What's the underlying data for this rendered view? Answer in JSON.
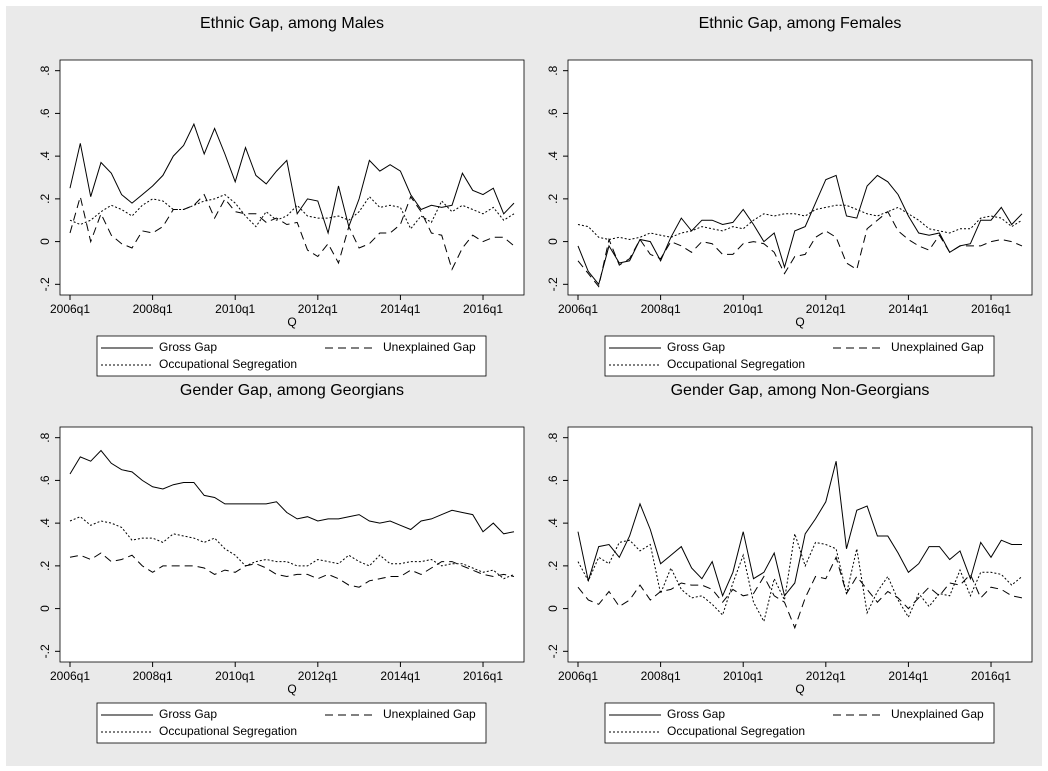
{
  "chart_data": [
    {
      "type": "line",
      "title": "Ethnic Gap, among Males",
      "x_label": "Q",
      "categories": [
        "2006q1",
        null,
        null,
        null,
        null,
        null,
        null,
        null,
        "2008q1",
        null,
        null,
        null,
        null,
        null,
        null,
        null,
        "2010q1",
        null,
        null,
        null,
        null,
        null,
        null,
        null,
        "2012q1",
        null,
        null,
        null,
        null,
        null,
        null,
        null,
        "2014q1",
        null,
        null,
        null,
        null,
        null,
        null,
        null,
        "2016q1",
        null,
        null,
        null
      ],
      "series": [
        {
          "name": "Gross Gap",
          "color": "#000000",
          "dash": "solid",
          "values": [
            0.25,
            0.46,
            0.21,
            0.37,
            0.32,
            0.22,
            0.18,
            0.22,
            0.26,
            0.31,
            0.4,
            0.45,
            0.55,
            0.41,
            0.53,
            0.41,
            0.28,
            0.44,
            0.31,
            0.27,
            0.33,
            0.38,
            0.13,
            0.2,
            0.19,
            0.04,
            0.26,
            0.07,
            0.2,
            0.38,
            0.33,
            0.36,
            0.33,
            0.22,
            0.15,
            0.17,
            0.16,
            0.17,
            0.32,
            0.24,
            0.22,
            0.25,
            0.13,
            0.18
          ]
        },
        {
          "name": "Unexplained Gap",
          "color": "#000000",
          "dash": "dash",
          "values": [
            0.04,
            0.21,
            0.0,
            0.13,
            0.03,
            -0.01,
            -0.03,
            0.05,
            0.04,
            0.07,
            0.15,
            0.15,
            0.17,
            0.22,
            0.11,
            0.2,
            0.14,
            0.13,
            0.13,
            0.09,
            0.11,
            0.08,
            0.09,
            -0.04,
            -0.07,
            -0.01,
            -0.1,
            0.07,
            -0.03,
            -0.01,
            0.04,
            0.04,
            0.08,
            0.21,
            0.14,
            0.04,
            0.03,
            -0.13,
            -0.03,
            0.03,
            0.0,
            0.02,
            0.02,
            -0.02
          ]
        },
        {
          "name": "Occupational Segregation",
          "color": "#000000",
          "dash": "dot",
          "values": [
            0.1,
            0.08,
            0.1,
            0.14,
            0.17,
            0.15,
            0.12,
            0.17,
            0.2,
            0.19,
            0.15,
            0.15,
            0.17,
            0.19,
            0.2,
            0.22,
            0.18,
            0.12,
            0.07,
            0.14,
            0.1,
            0.12,
            0.17,
            0.12,
            0.11,
            0.11,
            0.12,
            0.1,
            0.14,
            0.21,
            0.16,
            0.17,
            0.16,
            0.06,
            0.12,
            0.09,
            0.19,
            0.14,
            0.17,
            0.15,
            0.13,
            0.16,
            0.1,
            0.13
          ]
        }
      ],
      "ylim": [
        -0.25,
        0.85
      ],
      "yticks": [
        {
          "value": -0.2,
          "label": "-.2"
        },
        0,
        {
          "value": 0.2,
          "label": ".2"
        },
        {
          "value": 0.4,
          "label": ".4"
        },
        {
          "value": 0.6,
          "label": ".6"
        },
        {
          "value": 0.8,
          "label": ".8"
        }
      ],
      "grid": false,
      "legend": "bottom"
    },
    {
      "type": "line",
      "title": "Ethnic Gap, among Females",
      "x_label": "Q",
      "categories": [
        "2006q1",
        null,
        null,
        null,
        null,
        null,
        null,
        null,
        "2008q1",
        null,
        null,
        null,
        null,
        null,
        null,
        null,
        "2010q1",
        null,
        null,
        null,
        null,
        null,
        null,
        null,
        "2012q1",
        null,
        null,
        null,
        null,
        null,
        null,
        null,
        "2014q1",
        null,
        null,
        null,
        null,
        null,
        null,
        null,
        "2016q1",
        null,
        null,
        null
      ],
      "series": [
        {
          "name": "Gross Gap",
          "color": "#000000",
          "dash": "solid",
          "values": [
            -0.02,
            -0.14,
            -0.2,
            -0.02,
            -0.1,
            -0.09,
            0.01,
            0.0,
            -0.09,
            0.02,
            0.11,
            0.05,
            0.1,
            0.1,
            0.08,
            0.09,
            0.15,
            0.08,
            0.0,
            0.04,
            -0.12,
            0.05,
            0.07,
            0.18,
            0.29,
            0.31,
            0.12,
            0.11,
            0.26,
            0.31,
            0.28,
            0.22,
            0.12,
            0.04,
            0.03,
            0.04,
            -0.05,
            -0.02,
            -0.01,
            0.1,
            0.1,
            0.16,
            0.08,
            0.13
          ]
        },
        {
          "name": "Unexplained Gap",
          "color": "#000000",
          "dash": "dash",
          "values": [
            -0.09,
            -0.15,
            -0.21,
            0.01,
            -0.11,
            -0.08,
            0.01,
            -0.06,
            -0.08,
            0.0,
            -0.02,
            -0.05,
            0.0,
            -0.01,
            -0.06,
            -0.06,
            -0.01,
            0.0,
            -0.01,
            -0.05,
            -0.15,
            -0.07,
            -0.06,
            0.02,
            0.05,
            0.02,
            -0.1,
            -0.13,
            0.06,
            0.1,
            0.14,
            0.05,
            0.01,
            -0.02,
            -0.04,
            0.03,
            -0.05,
            -0.02,
            -0.02,
            -0.02,
            0.0,
            0.01,
            0.0,
            -0.02
          ]
        },
        {
          "name": "Occupational Segregation",
          "color": "#000000",
          "dash": "dot",
          "values": [
            0.08,
            0.07,
            0.02,
            0.01,
            0.02,
            0.01,
            0.02,
            0.04,
            0.03,
            0.02,
            0.04,
            0.05,
            0.07,
            0.06,
            0.05,
            0.07,
            0.06,
            0.1,
            0.13,
            0.12,
            0.13,
            0.13,
            0.12,
            0.15,
            0.16,
            0.17,
            0.17,
            0.15,
            0.13,
            0.12,
            0.14,
            0.16,
            0.13,
            0.1,
            0.06,
            0.05,
            0.04,
            0.06,
            0.06,
            0.11,
            0.12,
            0.11,
            0.07,
            0.1
          ]
        }
      ],
      "ylim": [
        -0.25,
        0.85
      ],
      "yticks": [
        {
          "value": -0.2,
          "label": "-.2"
        },
        0,
        {
          "value": 0.2,
          "label": ".2"
        },
        {
          "value": 0.4,
          "label": ".4"
        },
        {
          "value": 0.6,
          "label": ".6"
        },
        {
          "value": 0.8,
          "label": ".8"
        }
      ],
      "grid": false,
      "legend": "bottom"
    },
    {
      "type": "line",
      "title": "Gender Gap, among Georgians",
      "x_label": "Q",
      "categories": [
        "2006q1",
        null,
        null,
        null,
        null,
        null,
        null,
        null,
        "2008q1",
        null,
        null,
        null,
        null,
        null,
        null,
        null,
        "2010q1",
        null,
        null,
        null,
        null,
        null,
        null,
        null,
        "2012q1",
        null,
        null,
        null,
        null,
        null,
        null,
        null,
        "2014q1",
        null,
        null,
        null,
        null,
        null,
        null,
        null,
        "2016q1",
        null,
        null,
        null
      ],
      "series": [
        {
          "name": "Gross Gap",
          "color": "#000000",
          "dash": "solid",
          "values": [
            0.63,
            0.71,
            0.69,
            0.74,
            0.68,
            0.65,
            0.64,
            0.6,
            0.57,
            0.56,
            0.58,
            0.59,
            0.59,
            0.53,
            0.52,
            0.49,
            0.49,
            0.49,
            0.49,
            0.49,
            0.5,
            0.45,
            0.42,
            0.43,
            0.41,
            0.42,
            0.42,
            0.43,
            0.44,
            0.41,
            0.4,
            0.41,
            0.39,
            0.37,
            0.41,
            0.42,
            0.44,
            0.46,
            0.45,
            0.44,
            0.36,
            0.4,
            0.35,
            0.36
          ]
        },
        {
          "name": "Unexplained Gap",
          "color": "#000000",
          "dash": "dash",
          "values": [
            0.24,
            0.25,
            0.23,
            0.26,
            0.22,
            0.23,
            0.25,
            0.2,
            0.17,
            0.2,
            0.2,
            0.2,
            0.2,
            0.19,
            0.16,
            0.18,
            0.17,
            0.2,
            0.21,
            0.19,
            0.16,
            0.15,
            0.16,
            0.16,
            0.14,
            0.16,
            0.14,
            0.11,
            0.1,
            0.13,
            0.14,
            0.15,
            0.15,
            0.18,
            0.16,
            0.19,
            0.22,
            0.22,
            0.2,
            0.18,
            0.16,
            0.15,
            0.16,
            0.15
          ]
        },
        {
          "name": "Occupational Segregation",
          "color": "#000000",
          "dash": "dot",
          "values": [
            0.41,
            0.43,
            0.39,
            0.41,
            0.4,
            0.38,
            0.32,
            0.33,
            0.33,
            0.31,
            0.35,
            0.34,
            0.33,
            0.31,
            0.33,
            0.28,
            0.25,
            0.2,
            0.22,
            0.23,
            0.22,
            0.22,
            0.2,
            0.2,
            0.23,
            0.22,
            0.21,
            0.25,
            0.22,
            0.2,
            0.25,
            0.21,
            0.21,
            0.22,
            0.22,
            0.23,
            0.2,
            0.21,
            0.21,
            0.19,
            0.17,
            0.18,
            0.14,
            0.16
          ]
        }
      ],
      "ylim": [
        -0.25,
        0.85
      ],
      "yticks": [
        {
          "value": -0.2,
          "label": "-.2"
        },
        0,
        {
          "value": 0.2,
          "label": ".2"
        },
        {
          "value": 0.4,
          "label": ".4"
        },
        {
          "value": 0.6,
          "label": ".6"
        },
        {
          "value": 0.8,
          "label": ".8"
        }
      ],
      "grid": false,
      "legend": "bottom"
    },
    {
      "type": "line",
      "title": "Gender Gap, among Non-Georgians",
      "x_label": "Q",
      "categories": [
        "2006q1",
        null,
        null,
        null,
        null,
        null,
        null,
        null,
        "2008q1",
        null,
        null,
        null,
        null,
        null,
        null,
        null,
        "2010q1",
        null,
        null,
        null,
        null,
        null,
        null,
        null,
        "2012q1",
        null,
        null,
        null,
        null,
        null,
        null,
        null,
        "2014q1",
        null,
        null,
        null,
        null,
        null,
        null,
        null,
        "2016q1",
        null,
        null,
        null
      ],
      "series": [
        {
          "name": "Gross Gap",
          "color": "#000000",
          "dash": "solid",
          "values": [
            0.36,
            0.13,
            0.29,
            0.3,
            0.24,
            0.34,
            0.49,
            0.37,
            0.21,
            0.25,
            0.29,
            0.19,
            0.14,
            0.22,
            0.06,
            0.17,
            0.36,
            0.14,
            0.17,
            0.26,
            0.06,
            0.12,
            0.35,
            0.42,
            0.5,
            0.69,
            0.28,
            0.46,
            0.48,
            0.34,
            0.34,
            0.26,
            0.17,
            0.21,
            0.29,
            0.29,
            0.23,
            0.27,
            0.14,
            0.31,
            0.24,
            0.32,
            0.3,
            0.3
          ]
        },
        {
          "name": "Unexplained Gap",
          "color": "#000000",
          "dash": "dash",
          "values": [
            0.1,
            0.04,
            0.02,
            0.08,
            0.01,
            0.04,
            0.11,
            0.04,
            0.08,
            0.09,
            0.12,
            0.11,
            0.11,
            0.09,
            0.03,
            0.09,
            0.06,
            0.07,
            0.15,
            0.06,
            0.03,
            -0.09,
            0.05,
            0.15,
            0.14,
            0.24,
            0.07,
            0.15,
            0.09,
            0.03,
            0.08,
            0.05,
            0.0,
            0.05,
            0.1,
            0.06,
            0.12,
            0.11,
            0.16,
            0.05,
            0.1,
            0.09,
            0.06,
            0.05
          ]
        },
        {
          "name": "Occupational Segregation",
          "color": "#000000",
          "dash": "dot",
          "values": [
            0.22,
            0.13,
            0.24,
            0.21,
            0.31,
            0.32,
            0.27,
            0.3,
            0.07,
            0.19,
            0.09,
            0.05,
            0.06,
            0.02,
            -0.03,
            0.12,
            0.25,
            0.03,
            -0.06,
            0.14,
            0.04,
            0.35,
            0.2,
            0.31,
            0.3,
            0.28,
            0.07,
            0.28,
            -0.02,
            0.08,
            0.15,
            0.04,
            -0.04,
            0.07,
            0.01,
            0.07,
            0.06,
            0.18,
            0.06,
            0.17,
            0.17,
            0.16,
            0.11,
            0.15
          ]
        }
      ],
      "ylim": [
        -0.25,
        0.85
      ],
      "yticks": [
        {
          "value": -0.2,
          "label": "-.2"
        },
        0,
        {
          "value": 0.2,
          "label": ".2"
        },
        {
          "value": 0.4,
          "label": ".4"
        },
        {
          "value": 0.6,
          "label": ".6"
        },
        {
          "value": 0.8,
          "label": ".8"
        }
      ],
      "grid": false,
      "legend": "bottom"
    }
  ]
}
